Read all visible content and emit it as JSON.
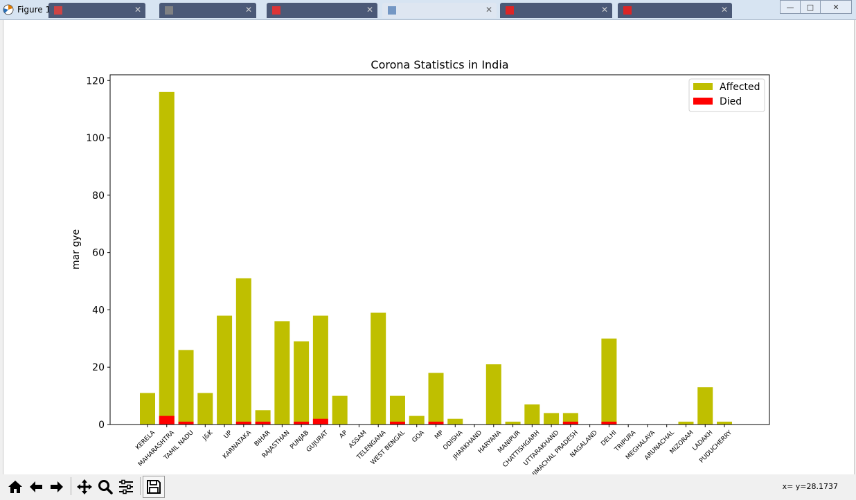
{
  "window": {
    "title": "Figure 1",
    "tab_count": 6,
    "active_tab_index": 4,
    "controls": {
      "minimize": "—",
      "maximize": "□",
      "close": "✕"
    }
  },
  "toolbar": {
    "items": [
      {
        "name": "home-icon"
      },
      {
        "name": "back-icon"
      },
      {
        "name": "forward-icon"
      },
      {
        "name": "pan-icon"
      },
      {
        "name": "zoom-icon"
      },
      {
        "name": "configure-subplots-icon"
      },
      {
        "name": "save-icon"
      }
    ],
    "coords": "x= y=28.1737"
  },
  "chart_data": {
    "type": "bar",
    "title": "Corona Statistics in India",
    "xlabel": "",
    "ylabel": "mar gye",
    "ylim": [
      0,
      122
    ],
    "yticks": [
      0,
      20,
      40,
      60,
      80,
      100,
      120
    ],
    "grid": false,
    "legend_position": "top-right",
    "categories": [
      "KERELA",
      "MAHARASHTRA",
      "TAMIL NADU",
      "J&K",
      "UP",
      "KARNATAKA",
      "BIHAR",
      "RAJASTHAN",
      "PUNJAB",
      "GUJURAT",
      "AP",
      "ASSAM",
      "TELENGANA",
      "WEST BENGAL",
      "GOA",
      "MP",
      "ODISHA",
      "JHARKHAND",
      "HARYANA",
      "MANIPUR",
      "CHATTISHGARH",
      "UTTARAKHAND",
      "HIMACHAL PRADESH",
      "NAGALAND",
      "DELHI",
      "TRIPURA",
      "MEGHALAYA",
      "ARUNACHAL",
      "MIZORAM",
      "LADAKH",
      "PUDUCHERRY"
    ],
    "series": [
      {
        "name": "Affected",
        "color": "#bfbf00",
        "values": [
          11,
          116,
          26,
          11,
          38,
          51,
          5,
          36,
          29,
          38,
          10,
          0,
          39,
          10,
          3,
          18,
          2,
          0,
          21,
          1,
          7,
          4,
          4,
          0,
          30,
          0,
          0,
          0,
          1,
          13,
          1
        ]
      },
      {
        "name": "Died",
        "color": "#ff0000",
        "values": [
          0,
          3,
          1,
          0,
          0,
          1,
          1,
          0,
          1,
          2,
          0,
          0,
          0,
          1,
          0,
          1,
          0,
          0,
          0,
          0,
          0,
          0,
          1,
          0,
          1,
          0,
          0,
          0,
          0,
          0,
          0
        ]
      }
    ]
  }
}
